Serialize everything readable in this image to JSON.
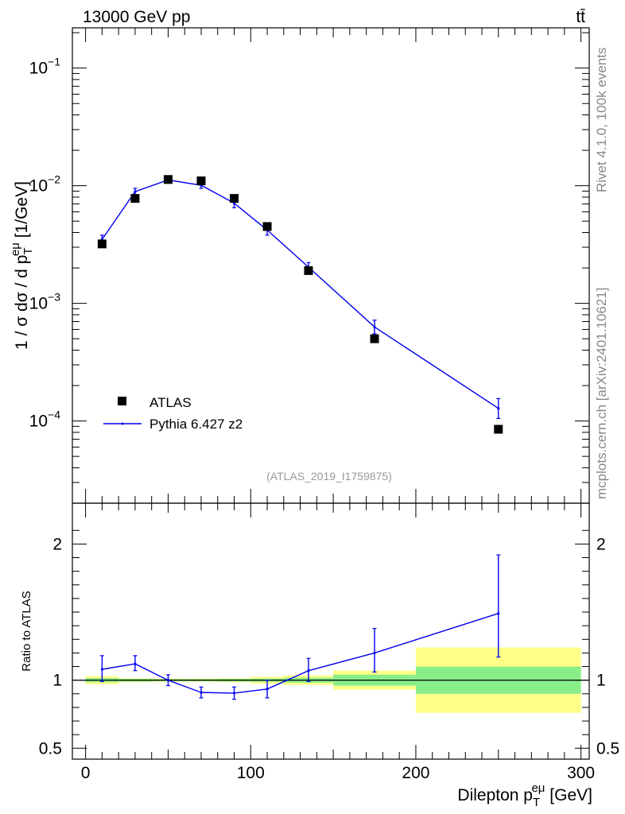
{
  "header": {
    "energy_label": "13000 GeV pp",
    "process_label": "tt̄"
  },
  "side_text": {
    "rivet_info": "Rivet 4.1.0,  100k events",
    "site_info": "mcplots.cern.ch [arXiv:2401.10621]"
  },
  "analysis_label": "(ATLAS_2019_I1759875)",
  "chart_data": [
    {
      "panel": "main",
      "type": "scatter",
      "yscale": "log",
      "ylabel": "1 / σ dσ / d p_T^eμ [1/GeV]",
      "ylabel_parts": {
        "main": "1 / σ  dσ / d p",
        "sub": "T",
        "sup": "eμ",
        "unit": " [1/GeV]"
      },
      "xlim": [
        -8,
        305
      ],
      "ylim": [
        2e-05,
        0.22
      ],
      "y_tick_labels": [
        {
          "value": 0.1,
          "base": "10",
          "exp": "−1"
        },
        {
          "value": 0.01,
          "base": "10",
          "exp": "−2"
        },
        {
          "value": 0.001,
          "base": "10",
          "exp": "−3"
        },
        {
          "value": 0.0001,
          "base": "10",
          "exp": "−4"
        }
      ],
      "legend": {
        "position": "lower-left",
        "entries": [
          {
            "name": "ATLAS",
            "style": "marker"
          },
          {
            "name": "Pythia 6.427 z2",
            "style": "line"
          }
        ]
      },
      "series": [
        {
          "name": "ATLAS",
          "color": "#000000",
          "x": [
            10,
            30,
            50,
            70,
            90,
            110,
            135,
            175,
            250
          ],
          "y": [
            0.0032,
            0.0078,
            0.0113,
            0.011,
            0.0078,
            0.0045,
            0.0019,
            0.0005,
            8.5e-05
          ]
        },
        {
          "name": "Pythia 6.427 z2",
          "color": "#0000ee",
          "x": [
            10,
            30,
            50,
            70,
            90,
            110,
            135,
            175,
            250
          ],
          "y": [
            0.0035,
            0.0089,
            0.0112,
            0.0101,
            0.0071,
            0.0042,
            0.00203,
            0.00063,
            0.000128
          ],
          "err_low": [
            0.0032,
            0.0083,
            0.0107,
            0.0095,
            0.0065,
            0.0038,
            0.00185,
            0.00055,
            0.000105
          ],
          "err_high": [
            0.0038,
            0.0095,
            0.0117,
            0.0107,
            0.0077,
            0.0046,
            0.00222,
            0.00072,
            0.000155
          ]
        }
      ]
    },
    {
      "panel": "ratio",
      "type": "line",
      "ylabel": "Ratio to ATLAS",
      "xlabel": "Dilepton p_T^eμ [GeV]",
      "xlabel_parts": {
        "main": "Dilepton p",
        "sub": "T",
        "sup": "eμ",
        "unit": " [GeV]"
      },
      "xlim": [
        -8,
        305
      ],
      "ylim": [
        0.42,
        2.3
      ],
      "x_ticks": [
        0,
        100,
        200,
        300
      ],
      "y_ticks": [
        0.5,
        1,
        2
      ],
      "reference_line": 1,
      "bands": {
        "bins": [
          [
            0,
            20
          ],
          [
            20,
            40
          ],
          [
            40,
            60
          ],
          [
            60,
            80
          ],
          [
            80,
            100
          ],
          [
            100,
            120
          ],
          [
            120,
            150
          ],
          [
            150,
            200
          ],
          [
            200,
            300
          ]
        ],
        "green_low": [
          0.985,
          0.99,
          0.992,
          0.992,
          0.99,
          0.988,
          0.982,
          0.96,
          0.9
        ],
        "green_high": [
          1.015,
          1.01,
          1.008,
          1.008,
          1.01,
          1.012,
          1.018,
          1.04,
          1.1
        ],
        "yellow_low": [
          0.97,
          0.985,
          0.988,
          0.988,
          0.985,
          0.975,
          0.965,
          0.93,
          0.76
        ],
        "yellow_high": [
          1.03,
          1.015,
          1.012,
          1.012,
          1.015,
          1.025,
          1.035,
          1.07,
          1.24
        ]
      },
      "series": [
        {
          "name": "Pythia 6.427 z2",
          "color": "#0000ee",
          "x": [
            10,
            30,
            50,
            70,
            90,
            110,
            135,
            175,
            250
          ],
          "y": [
            1.08,
            1.12,
            1.0,
            0.91,
            0.905,
            0.935,
            1.07,
            1.2,
            1.49
          ],
          "err_low": [
            0.99,
            1.07,
            0.96,
            0.87,
            0.86,
            0.87,
            0.99,
            1.06,
            1.17
          ],
          "err_high": [
            1.18,
            1.18,
            1.04,
            0.95,
            0.95,
            1.0,
            1.16,
            1.38,
            1.92
          ]
        }
      ]
    }
  ]
}
